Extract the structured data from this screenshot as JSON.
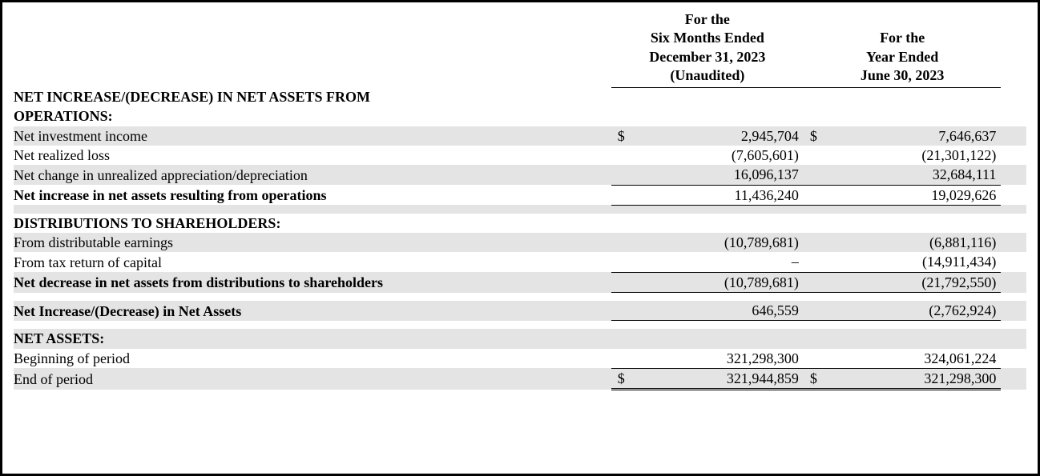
{
  "colors": {
    "border": "#000000",
    "shade": "#e4e4e4",
    "background": "#ffffff",
    "text": "#000000"
  },
  "headers": {
    "col1_l1": "For the",
    "col1_l2": "Six Months Ended",
    "col1_l3": "December 31, 2023",
    "col1_l4": "(Unaudited)",
    "col2_l1": "For the",
    "col2_l2": "Year Ended",
    "col2_l3": "June 30, 2023"
  },
  "sections": {
    "ops_title_l1": "NET INCREASE/(DECREASE) IN NET ASSETS FROM",
    "ops_title_l2": "OPERATIONS:",
    "nii_label": "Net investment income",
    "nii_cur1": "$",
    "nii_amt1": "2,945,704",
    "nii_cur2": "$",
    "nii_amt2": "7,646,637",
    "nrl_label": "Net realized loss",
    "nrl_amt1": "(7,605,601)",
    "nrl_amt2": "(21,301,122)",
    "nua_label": "Net change in unrealized appreciation/depreciation",
    "nua_amt1": "16,096,137",
    "nua_amt2": "32,684,111",
    "ops_total_label": "Net increase in net assets resulting from operations",
    "ops_total_amt1": "11,436,240",
    "ops_total_amt2": "19,029,626",
    "dist_title": "DISTRIBUTIONS TO SHAREHOLDERS:",
    "de_label": "From distributable earnings",
    "de_amt1": "(10,789,681)",
    "de_amt2": "(6,881,116)",
    "trc_label": "From tax return of capital",
    "trc_amt1": "–",
    "trc_amt2": "(14,911,434)",
    "dist_total_label": "Net decrease in net assets from distributions to shareholders",
    "dist_total_amt1": "(10,789,681)",
    "dist_total_amt2": "(21,792,550)",
    "netchg_label": "Net Increase/(Decrease) in Net Assets",
    "netchg_amt1": "646,559",
    "netchg_amt2": "(2,762,924)",
    "na_title": "NET ASSETS:",
    "bop_label": "Beginning of period",
    "bop_amt1": "321,298,300",
    "bop_amt2": "324,061,224",
    "eop_label": "End of period",
    "eop_cur1": "$",
    "eop_amt1": "321,944,859",
    "eop_cur2": "$",
    "eop_amt2": "321,298,300"
  }
}
